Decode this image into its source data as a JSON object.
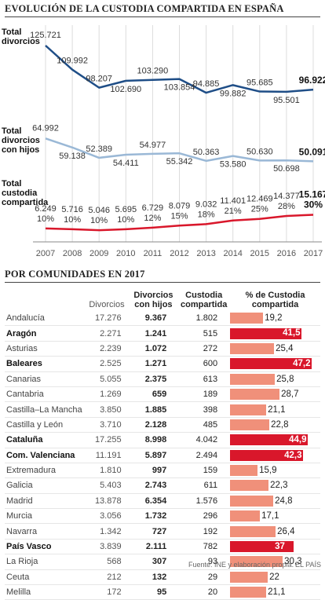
{
  "title": "EVOLUCIÓN DE LA CUSTODIA COMPARTIDA EN ESPAÑA",
  "table_title": "POR COMUNIDADES EN 2017",
  "source": "Fuente: INE y elaboración propia.",
  "brand": "EL PAÍS",
  "colors": {
    "divorcios": "#1f4e87",
    "con_hijos": "#9ab8d6",
    "custodia": "#d9172b",
    "bar": "#f0907a",
    "bar_highlight": "#d9172b"
  },
  "chart_data": [
    {
      "type": "line",
      "title": "EVOLUCIÓN DE LA CUSTODIA COMPARTIDA EN ESPAÑA",
      "x": [
        2007,
        2008,
        2009,
        2010,
        2011,
        2012,
        2013,
        2014,
        2015,
        2016,
        2017
      ],
      "series": [
        {
          "name": "Total divorcios",
          "values": [
            125721,
            109992,
            98207,
            102690,
            103290,
            103854,
            94885,
            99882,
            95685,
            95501,
            96922
          ],
          "labels": [
            "125.721",
            "109.992",
            "98.207",
            "102.690",
            "103.290",
            "103.854",
            "94.885",
            "99.882",
            "95.685",
            "95.501",
            "96.922"
          ]
        },
        {
          "name": "Total divorcios con hijos",
          "values": [
            64992,
            59138,
            52389,
            54411,
            54977,
            55342,
            50363,
            53580,
            50630,
            50698,
            50091
          ],
          "labels": [
            "64.992",
            "59.138",
            "52.389",
            "54.411",
            "54.977",
            "55.342",
            "50.363",
            "53.580",
            "50.630",
            "50.698",
            "50.091"
          ]
        },
        {
          "name": "Total custodia compartida",
          "values": [
            6249,
            5716,
            5046,
            5695,
            6729,
            8079,
            9032,
            11401,
            12469,
            14377,
            15167
          ],
          "labels": [
            "6.249",
            "5.716",
            "5.046",
            "5.695",
            "6.729",
            "8.079",
            "9.032",
            "11.401",
            "12.469",
            "14.377",
            "15.167"
          ],
          "pct_labels": [
            "10%",
            "10%",
            "10%",
            "10%",
            "12%",
            "15%",
            "18%",
            "21%",
            "25%",
            "28%",
            "30%"
          ]
        }
      ]
    },
    {
      "type": "table",
      "title": "POR COMUNIDADES EN 2017",
      "columns": [
        "",
        "Divorcios",
        "Divorcios con hijos",
        "Custodia compartida",
        "% de Custodia compartida"
      ],
      "rows": [
        {
          "region": "Andalucía",
          "divorcios": "17.276",
          "con_hijos": "9.367",
          "custodia": "1.802",
          "pct": 19.2,
          "pct_label": "19,2",
          "highlight": false
        },
        {
          "region": "Aragón",
          "divorcios": "2.271",
          "con_hijos": "1.241",
          "custodia": "515",
          "pct": 41.5,
          "pct_label": "41,5",
          "highlight": true
        },
        {
          "region": "Asturias",
          "divorcios": "2.239",
          "con_hijos": "1.072",
          "custodia": "272",
          "pct": 25.4,
          "pct_label": "25,4",
          "highlight": false
        },
        {
          "region": "Baleares",
          "divorcios": "2.525",
          "con_hijos": "1.271",
          "custodia": "600",
          "pct": 47.2,
          "pct_label": "47,2",
          "highlight": true
        },
        {
          "region": "Canarias",
          "divorcios": "5.055",
          "con_hijos": "2.375",
          "custodia": "613",
          "pct": 25.8,
          "pct_label": "25,8",
          "highlight": false
        },
        {
          "region": "Cantabria",
          "divorcios": "1.269",
          "con_hijos": "659",
          "custodia": "189",
          "pct": 28.7,
          "pct_label": "28,7",
          "highlight": false
        },
        {
          "region": "Castilla–La Mancha",
          "divorcios": "3.850",
          "con_hijos": "1.885",
          "custodia": "398",
          "pct": 21.1,
          "pct_label": "21,1",
          "highlight": false
        },
        {
          "region": "Castilla y León",
          "divorcios": "3.710",
          "con_hijos": "2.128",
          "custodia": "485",
          "pct": 22.8,
          "pct_label": "22,8",
          "highlight": false
        },
        {
          "region": "Cataluña",
          "divorcios": "17.255",
          "con_hijos": "8.998",
          "custodia": "4.042",
          "pct": 44.9,
          "pct_label": "44,9",
          "highlight": true
        },
        {
          "region": "Com. Valenciana",
          "divorcios": "11.191",
          "con_hijos": "5.897",
          "custodia": "2.494",
          "pct": 42.3,
          "pct_label": "42,3",
          "highlight": true
        },
        {
          "region": "Extremadura",
          "divorcios": "1.810",
          "con_hijos": "997",
          "custodia": "159",
          "pct": 15.9,
          "pct_label": "15,9",
          "highlight": false
        },
        {
          "region": "Galicia",
          "divorcios": "5.403",
          "con_hijos": "2.743",
          "custodia": "611",
          "pct": 22.3,
          "pct_label": "22,3",
          "highlight": false
        },
        {
          "region": "Madrid",
          "divorcios": "13.878",
          "con_hijos": "6.354",
          "custodia": "1.576",
          "pct": 24.8,
          "pct_label": "24,8",
          "highlight": false
        },
        {
          "region": "Murcia",
          "divorcios": "3.056",
          "con_hijos": "1.732",
          "custodia": "296",
          "pct": 17.1,
          "pct_label": "17,1",
          "highlight": false
        },
        {
          "region": "Navarra",
          "divorcios": "1.342",
          "con_hijos": "727",
          "custodia": "192",
          "pct": 26.4,
          "pct_label": "26,4",
          "highlight": false
        },
        {
          "region": "País Vasco",
          "divorcios": "3.839",
          "con_hijos": "2.111",
          "custodia": "782",
          "pct": 37,
          "pct_label": "37",
          "highlight": true
        },
        {
          "region": "La Rioja",
          "divorcios": "568",
          "con_hijos": "307",
          "custodia": "93",
          "pct": 30.3,
          "pct_label": "30,3",
          "highlight": false
        },
        {
          "region": "Ceuta",
          "divorcios": "212",
          "con_hijos": "132",
          "custodia": "29",
          "pct": 22,
          "pct_label": "22",
          "highlight": false
        },
        {
          "region": "Melilla",
          "divorcios": "172",
          "con_hijos": "95",
          "custodia": "20",
          "pct": 21.1,
          "pct_label": "21,1",
          "highlight": false
        }
      ]
    }
  ]
}
